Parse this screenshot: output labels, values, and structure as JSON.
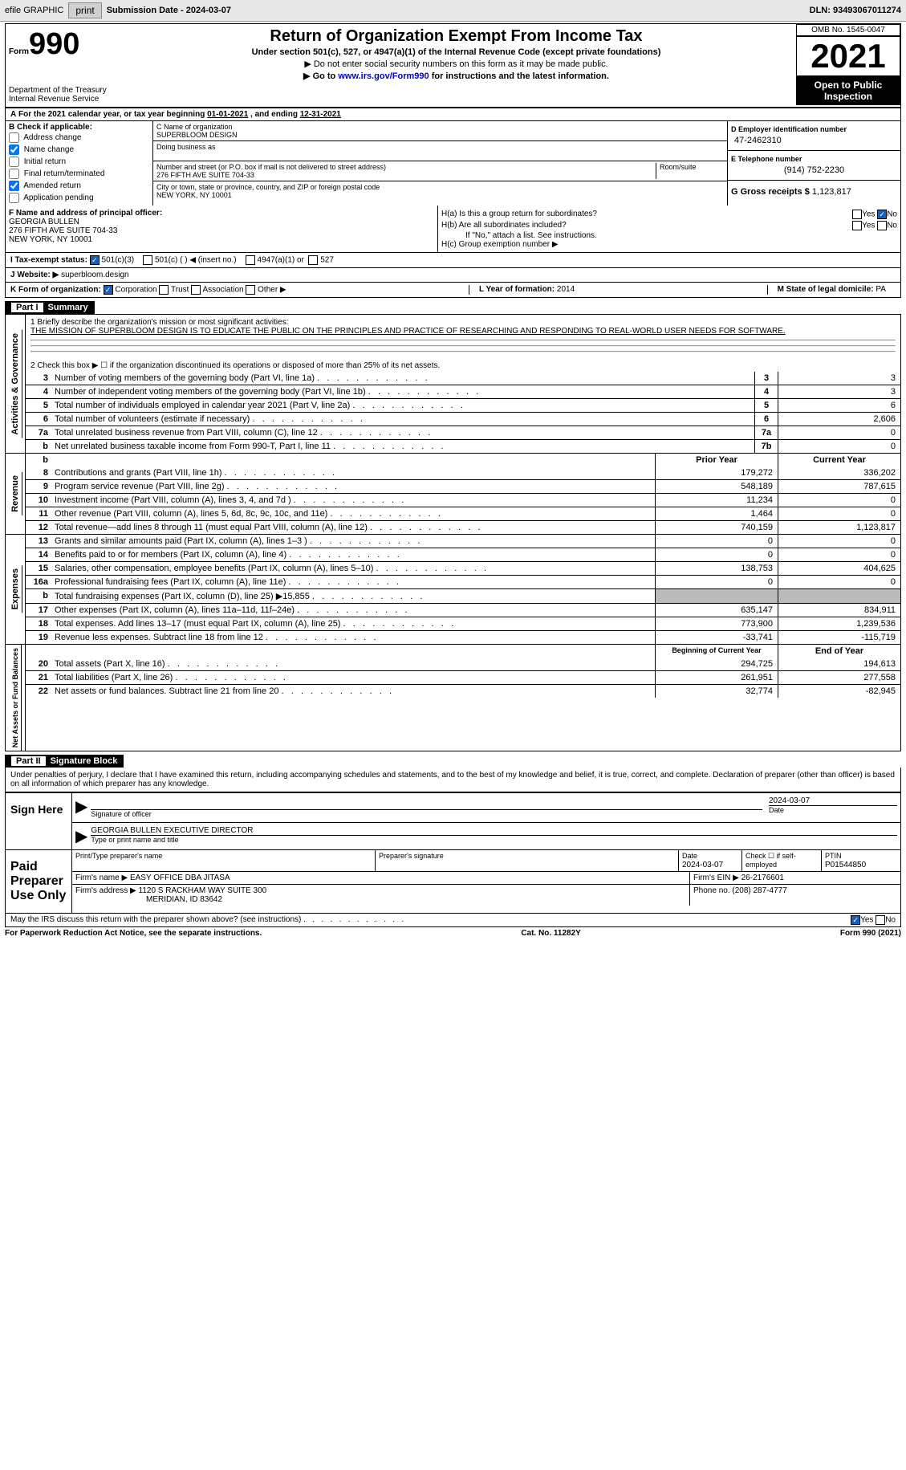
{
  "toolbar": {
    "efile_graphic": "efile GRAPHIC",
    "print": "print",
    "sub_date_lbl": "Submission Date - ",
    "sub_date": "2024-03-07",
    "dln_lbl": "DLN: ",
    "dln": "93493067011274"
  },
  "header": {
    "form_word": "Form",
    "form_num": "990",
    "dept": "Department of the Treasury",
    "irs": "Internal Revenue Service",
    "title": "Return of Organization Exempt From Income Tax",
    "sub1": "Under section 501(c), 527, or 4947(a)(1) of the Internal Revenue Code (except private foundations)",
    "sub2": "▶ Do not enter social security numbers on this form as it may be made public.",
    "sub3a": "▶ Go to ",
    "sub3link": "www.irs.gov/Form990",
    "sub3b": " for instructions and the latest information.",
    "omb": "OMB No. 1545-0047",
    "year": "2021",
    "otp": "Open to Public Inspection"
  },
  "lineA": {
    "a": "A",
    "txt": "For the 2021 calendar year, or tax year beginning ",
    "begin": "01-01-2021",
    "mid": " , and ending ",
    "end": "12-31-2021"
  },
  "secB": {
    "lbl": "B Check if applicable:",
    "items": [
      {
        "label": "Address change",
        "checked": false
      },
      {
        "label": "Name change",
        "checked": true
      },
      {
        "label": "Initial return",
        "checked": false
      },
      {
        "label": "Final return/terminated",
        "checked": false
      },
      {
        "label": "Amended return",
        "checked": true
      },
      {
        "label": "Application pending",
        "checked": false
      }
    ]
  },
  "secC": {
    "name_lbl": "C Name of organization",
    "name": "SUPERBLOOM DESIGN",
    "dba_lbl": "Doing business as",
    "dba": "",
    "addr_lbl": "Number and street (or P.O. box if mail is not delivered to street address)",
    "room_lbl": "Room/suite",
    "addr": "276 FIFTH AVE SUITE 704-33",
    "city_lbl": "City or town, state or province, country, and ZIP or foreign postal code",
    "city": "NEW YORK, NY  10001"
  },
  "secD": {
    "ein_lbl": "D Employer identification number",
    "ein": "47-2462310",
    "tel_lbl": "E Telephone number",
    "tel": "(914) 752-2230",
    "gross_lbl": "G Gross receipts $ ",
    "gross": "1,123,817"
  },
  "secF": {
    "lbl": "F  Name and address of principal officer:",
    "name": "GEORGIA BULLEN",
    "addr1": "276 FIFTH AVE SUITE 704-33",
    "addr2": "NEW YORK, NY  10001"
  },
  "secH": {
    "ha": "H(a)  Is this a group return for subordinates?",
    "ha_yes": "Yes",
    "ha_no": "No",
    "ha_checked": "no",
    "hb": "H(b)  Are all subordinates included?",
    "hb_note": "If \"No,\" attach a list. See instructions.",
    "hc": "H(c)  Group exemption number ▶"
  },
  "secI": {
    "lbl": "I   Tax-exempt status:",
    "o1": "501(c)(3)",
    "o1c": true,
    "o2": "501(c) (  ) ◀ (insert no.)",
    "o3": "4947(a)(1) or",
    "o4": "527"
  },
  "secJ": {
    "lbl": "J   Website: ▶",
    "val": " superbloom.design"
  },
  "secK": {
    "lbl": "K Form of organization:",
    "corp": "Corporation",
    "corp_c": true,
    "trust": "Trust",
    "assoc": "Association",
    "other": "Other ▶",
    "l_lbl": "L Year of formation: ",
    "l_val": "2014",
    "m_lbl": "M State of legal domicile: ",
    "m_val": "PA"
  },
  "part1": {
    "hdr": "Part I",
    "title": "Summary"
  },
  "summary": {
    "ag_label": "Activities & Governance",
    "rev_label": "Revenue",
    "exp_label": "Expenses",
    "na_label": "Net Assets or Fund Balances",
    "l1_lbl": "1   Briefly describe the organization's mission or most significant activities:",
    "l1_txt": "THE MISSION OF SUPERBLOOM DESIGN IS TO EDUCATE THE PUBLIC ON THE PRINCIPLES AND PRACTICE OF RESEARCHING AND RESPONDING TO REAL-WORLD USER NEEDS FOR SOFTWARE.",
    "l2": "2   Check this box ▶ ☐ if the organization discontinued its operations or disposed of more than 25% of its net assets.",
    "rows_ag": [
      {
        "n": "3",
        "t": "Number of voting members of the governing body (Part VI, line 1a)",
        "cn": "3",
        "v": "3"
      },
      {
        "n": "4",
        "t": "Number of independent voting members of the governing body (Part VI, line 1b)",
        "cn": "4",
        "v": "3"
      },
      {
        "n": "5",
        "t": "Total number of individuals employed in calendar year 2021 (Part V, line 2a)",
        "cn": "5",
        "v": "6"
      },
      {
        "n": "6",
        "t": "Total number of volunteers (estimate if necessary)",
        "cn": "6",
        "v": "2,606"
      },
      {
        "n": "7a",
        "t": "Total unrelated business revenue from Part VIII, column (C), line 12",
        "cn": "7a",
        "v": "0"
      },
      {
        "n": "b",
        "t": "Net unrelated business taxable income from Form 990-T, Part I, line 11",
        "cn": "7b",
        "v": "0"
      }
    ],
    "hdr_py": "Prior Year",
    "hdr_cy": "Current Year",
    "rows_rev": [
      {
        "n": "8",
        "t": "Contributions and grants (Part VIII, line 1h)",
        "py": "179,272",
        "cy": "336,202"
      },
      {
        "n": "9",
        "t": "Program service revenue (Part VIII, line 2g)",
        "py": "548,189",
        "cy": "787,615"
      },
      {
        "n": "10",
        "t": "Investment income (Part VIII, column (A), lines 3, 4, and 7d )",
        "py": "11,234",
        "cy": "0"
      },
      {
        "n": "11",
        "t": "Other revenue (Part VIII, column (A), lines 5, 6d, 8c, 9c, 10c, and 11e)",
        "py": "1,464",
        "cy": "0"
      },
      {
        "n": "12",
        "t": "Total revenue—add lines 8 through 11 (must equal Part VIII, column (A), line 12)",
        "py": "740,159",
        "cy": "1,123,817"
      }
    ],
    "rows_exp": [
      {
        "n": "13",
        "t": "Grants and similar amounts paid (Part IX, column (A), lines 1–3 )",
        "py": "0",
        "cy": "0"
      },
      {
        "n": "14",
        "t": "Benefits paid to or for members (Part IX, column (A), line 4)",
        "py": "0",
        "cy": "0"
      },
      {
        "n": "15",
        "t": "Salaries, other compensation, employee benefits (Part IX, column (A), lines 5–10)",
        "py": "138,753",
        "cy": "404,625"
      },
      {
        "n": "16a",
        "t": "Professional fundraising fees (Part IX, column (A), line 11e)",
        "py": "0",
        "cy": "0"
      },
      {
        "n": "b",
        "t": "Total fundraising expenses (Part IX, column (D), line 25) ▶15,855",
        "py": "",
        "cy": "",
        "grey": true
      },
      {
        "n": "17",
        "t": "Other expenses (Part IX, column (A), lines 11a–11d, 11f–24e)",
        "py": "635,147",
        "cy": "834,911"
      },
      {
        "n": "18",
        "t": "Total expenses. Add lines 13–17 (must equal Part IX, column (A), line 25)",
        "py": "773,900",
        "cy": "1,239,536"
      },
      {
        "n": "19",
        "t": "Revenue less expenses. Subtract line 18 from line 12",
        "py": "-33,741",
        "cy": "-115,719"
      }
    ],
    "hdr_boy": "Beginning of Current Year",
    "hdr_eoy": "End of Year",
    "rows_na": [
      {
        "n": "20",
        "t": "Total assets (Part X, line 16)",
        "py": "294,725",
        "cy": "194,613"
      },
      {
        "n": "21",
        "t": "Total liabilities (Part X, line 26)",
        "py": "261,951",
        "cy": "277,558"
      },
      {
        "n": "22",
        "t": "Net assets or fund balances. Subtract line 21 from line 20",
        "py": "32,774",
        "cy": "-82,945"
      }
    ]
  },
  "part2": {
    "hdr": "Part II",
    "title": "Signature Block"
  },
  "decl": "Under penalties of perjury, I declare that I have examined this return, including accompanying schedules and statements, and to the best of my knowledge and belief, it is true, correct, and complete. Declaration of preparer (other than officer) is based on all information of which preparer has any knowledge.",
  "sign": {
    "here": "Sign Here",
    "sig_lbl": "Signature of officer",
    "date": "2024-03-07",
    "date_lbl": "Date",
    "name": "GEORGIA BULLEN  EXECUTIVE DIRECTOR",
    "name_lbl": "Type or print name and title"
  },
  "prep": {
    "here": "Paid Preparer Use Only",
    "h1": "Print/Type preparer's name",
    "h2": "Preparer's signature",
    "h3": "Date",
    "h3v": "2024-03-07",
    "h4": "Check ☐ if self-employed",
    "h5": "PTIN",
    "h5v": "P01544850",
    "firm_lbl": "Firm's name    ▶",
    "firm": "EASY OFFICE DBA JITASA",
    "ein_lbl": "Firm's EIN ▶",
    "ein": "26-2176601",
    "addr_lbl": "Firm's address ▶",
    "addr1": "1120 S RACKHAM WAY SUITE 300",
    "addr2": "MERIDIAN, ID  83642",
    "ph_lbl": "Phone no. ",
    "ph": "(208) 287-4777"
  },
  "may": {
    "txt": "May the IRS discuss this return with the preparer shown above? (see instructions)",
    "yes": "Yes",
    "no": "No",
    "checked": "yes"
  },
  "foot": {
    "l": "For Paperwork Reduction Act Notice, see the separate instructions.",
    "m": "Cat. No. 11282Y",
    "r": "Form 990 (2021)"
  }
}
